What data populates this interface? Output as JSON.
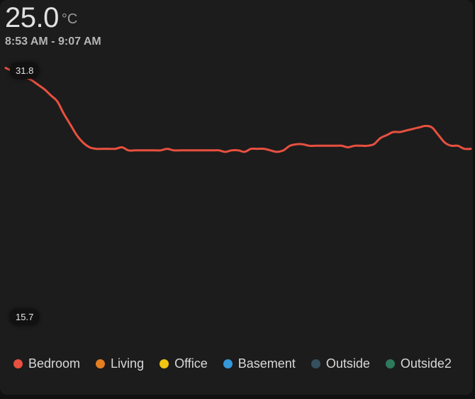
{
  "header": {
    "value": "25.0",
    "unit": "°C",
    "time_range": "8:53 AM - 9:07 AM"
  },
  "axis": {
    "max_label": "31.8",
    "min_label": "15.7"
  },
  "colors": {
    "Bedroom": "#e8503f",
    "Living": "#e67e22",
    "Office": "#f1c40f",
    "Basement": "#3498db",
    "Outside": "#34505e",
    "Outside2": "#2d7a5d"
  },
  "legend": [
    {
      "label": "Bedroom"
    },
    {
      "label": "Living"
    },
    {
      "label": "Office"
    },
    {
      "label": "Basement"
    },
    {
      "label": "Outside"
    },
    {
      "label": "Outside2"
    }
  ],
  "chart_data": {
    "type": "line",
    "ylim": [
      15.7,
      31.8
    ],
    "series": [
      {
        "name": "Bedroom",
        "y": [
          32.0,
          31.8,
          31.6,
          31.4,
          31.2,
          30.9,
          30.6,
          30.2,
          29.8,
          29.0,
          28.3,
          27.6,
          27.1,
          26.8,
          26.7,
          26.7,
          26.7,
          26.7,
          26.8,
          26.6,
          26.6,
          26.6,
          26.6,
          26.6,
          26.6,
          26.7,
          26.6,
          26.6,
          26.6,
          26.6,
          26.6,
          26.6,
          26.6,
          26.6,
          26.5,
          26.6,
          26.6,
          26.5,
          26.7,
          26.7,
          26.7,
          26.6,
          26.5,
          26.6,
          26.9,
          27.0,
          27.0,
          26.9,
          26.9,
          26.9,
          26.9,
          26.9,
          26.9,
          26.8,
          26.9,
          26.9,
          26.9,
          27.0,
          27.4,
          27.6,
          27.8,
          27.8,
          27.9,
          28.0,
          28.1,
          28.2,
          28.1,
          27.6,
          27.1,
          26.9,
          26.9,
          26.7,
          26.7
        ]
      }
    ]
  }
}
